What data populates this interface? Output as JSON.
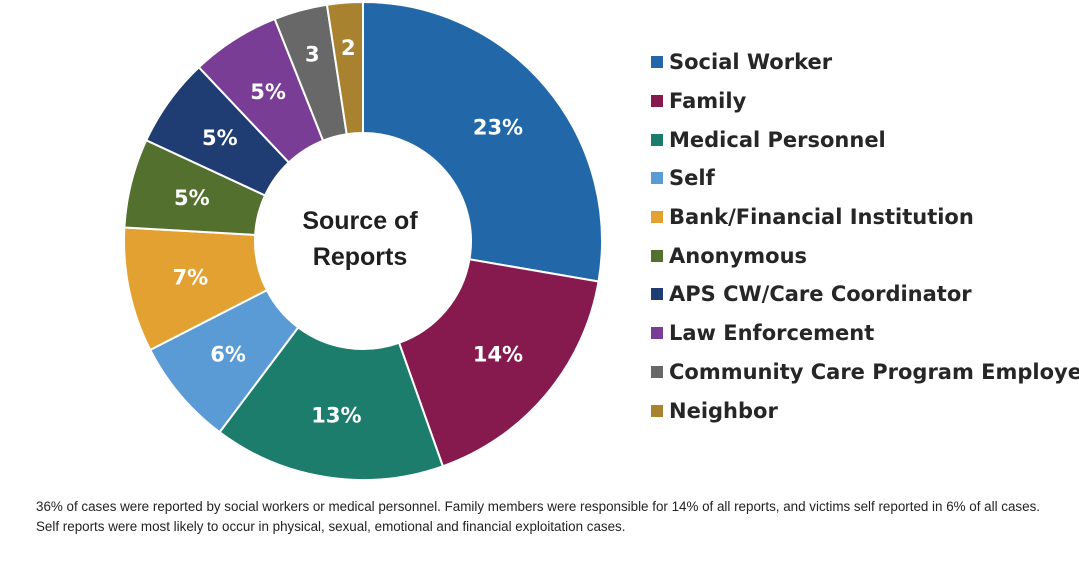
{
  "chart_data": {
    "type": "pie",
    "title": "Source of Reports",
    "title_lines": [
      "Source of",
      "Reports"
    ],
    "donut": true,
    "start": "top, clockwise",
    "legend_position": "right",
    "slices": [
      {
        "name": "Social Worker",
        "value": 23,
        "label": "23%",
        "color": "#2268A8"
      },
      {
        "name": "Family",
        "value": 14,
        "label": "14%",
        "color": "#861A4E"
      },
      {
        "name": "Medical Personnel",
        "value": 13,
        "label": "13%",
        "color": "#1C7D6C"
      },
      {
        "name": "Self",
        "value": 6,
        "label": "6%",
        "color": "#5B9BD5"
      },
      {
        "name": "Bank/Financial Institution",
        "value": 7,
        "label": "7%",
        "color": "#E3A131"
      },
      {
        "name": "Anonymous",
        "value": 5,
        "label": "5%",
        "color": "#53702F"
      },
      {
        "name": "APS CW/Care Coordinator",
        "value": 5,
        "label": "5%",
        "color": "#1F3C73"
      },
      {
        "name": "Law Enforcement",
        "value": 5,
        "label": "5%",
        "color": "#793D96"
      },
      {
        "name": "Community Care Program Employee",
        "value": 3,
        "label": "3",
        "color": "#686868"
      },
      {
        "name": "Neighbor",
        "value": 2,
        "label": "2",
        "color": "#A9822F"
      }
    ],
    "legend_order": [
      "Social Worker",
      "Family",
      "Medical Personnel",
      "Self",
      "Bank/Financial Institution",
      "Anonymous",
      "APS CW/Care Coordinator",
      "Law Enforcement",
      "Community Care Program Employee",
      "Neighbor"
    ]
  },
  "caption": {
    "line1": "36% of cases were reported by social workers or medical personnel. Family members were responsible for 14% of all reports, and victims self reported in 6% of all cases.",
    "line2": "Self reports were most likely to occur in physical, sexual, emotional and financial exploitation cases."
  }
}
